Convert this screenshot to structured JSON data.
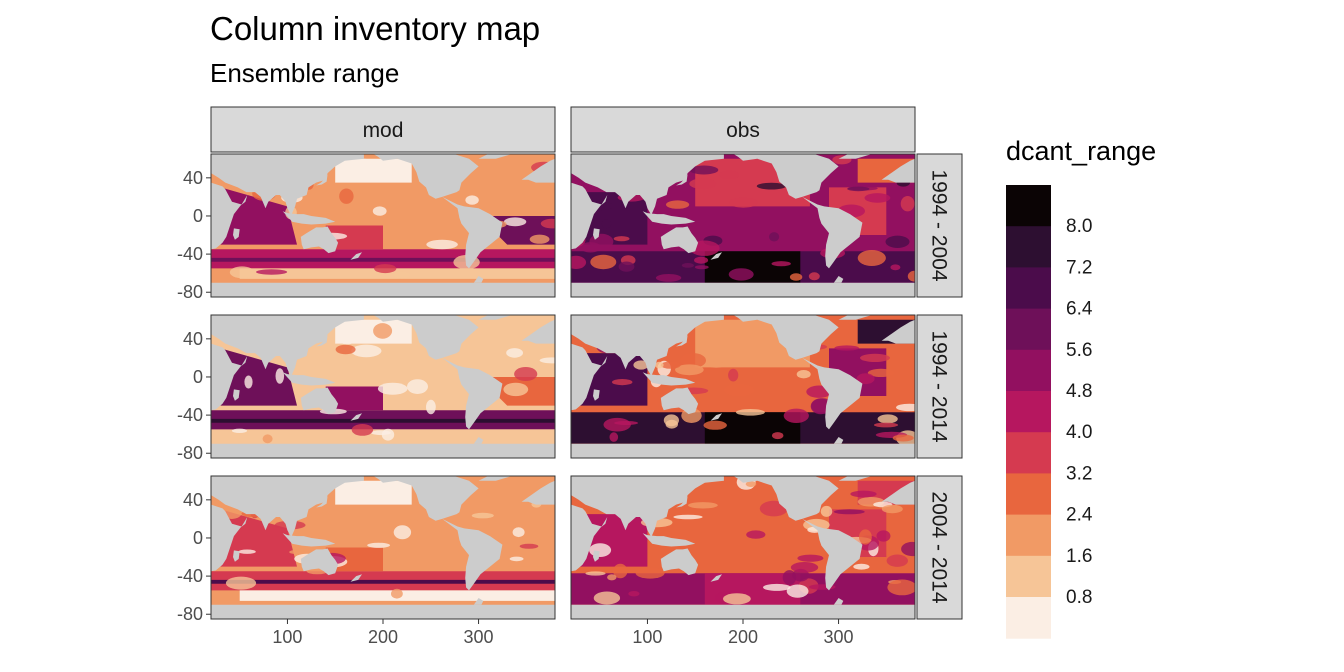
{
  "chart_data": {
    "type": "heatmap",
    "title": "Column inventory map",
    "subtitle": "Ensemble range",
    "facet_columns": [
      "mod",
      "obs"
    ],
    "facet_rows": [
      "1994 - 2004",
      "1994 - 2014",
      "2004 - 2014"
    ],
    "x_ticks": [
      100,
      200,
      300
    ],
    "y_ticks": [
      40,
      0,
      -40,
      -80
    ],
    "xlim": [
      20,
      380
    ],
    "ylim": [
      -85,
      65
    ],
    "legend": {
      "title": "dcant_range",
      "position": "right",
      "labels": [
        "8.0",
        "7.2",
        "6.4",
        "5.6",
        "4.8",
        "4.0",
        "3.2",
        "2.4",
        "1.6",
        "0.8"
      ],
      "colors": [
        "#0b0405",
        "#2d0f31",
        "#4b0c4b",
        "#6e1059",
        "#921060",
        "#b6175f",
        "#d53a50",
        "#e8663e",
        "#f19a65",
        "#f6c597",
        "#fbeee4"
      ]
    },
    "land_color": "#cccccc",
    "panel_background": "#ffffff",
    "strip_fill": "#d9d9d9"
  }
}
